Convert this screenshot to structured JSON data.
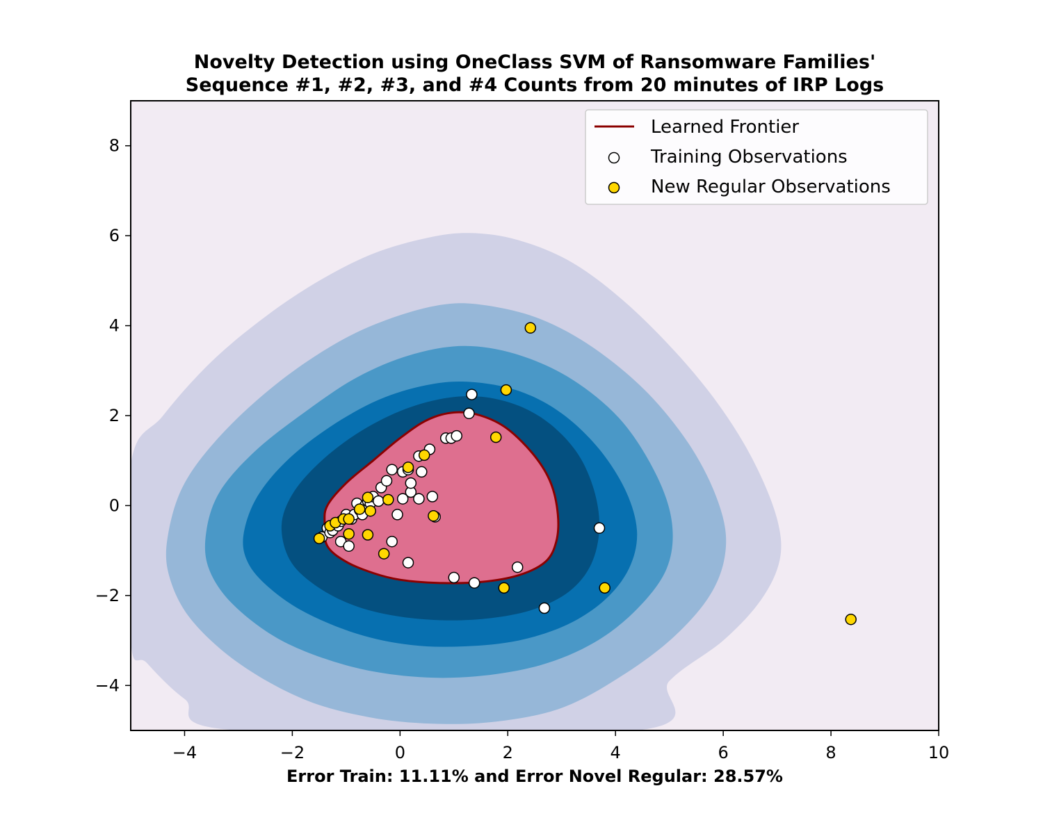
{
  "chart_data": {
    "type": "scatter",
    "title_lines": [
      "Novelty Detection using OneClass SVM of Ransomware Families'",
      "Sequence #1, #2, #3, and #4 Counts from 20 minutes of IRP Logs"
    ],
    "xlabel": "Error Train: 11.11% and Error Novel Regular: 28.57%",
    "ylabel": "",
    "xlim": [
      -5,
      10
    ],
    "ylim": [
      -5,
      9
    ],
    "xticks": [
      -4,
      -2,
      0,
      2,
      4,
      6,
      8,
      10
    ],
    "yticks": [
      -4,
      -2,
      0,
      2,
      4,
      6,
      8
    ],
    "grid": false,
    "legend_position": "top-right",
    "colors": {
      "background": "#f2ebf3",
      "contour_levels": [
        "#d0d1e6",
        "#96b7d8",
        "#4a98c7",
        "#0770b0",
        "#045080"
      ],
      "frontier_fill": "#de6f8f",
      "frontier_line": "#8b0000",
      "training_face": "#ffffff",
      "new_regular_face": "#ffd700",
      "marker_edge": "#000000"
    },
    "legend": [
      {
        "label": "Learned Frontier",
        "kind": "line"
      },
      {
        "label": "Training Observations",
        "kind": "training"
      },
      {
        "label": "New Regular Observations",
        "kind": "new"
      }
    ],
    "frontier": {
      "label": "Learned Frontier",
      "points": [
        [
          -1.35,
          -0.9
        ],
        [
          -1.4,
          -0.4
        ],
        [
          -1.35,
          0.0
        ],
        [
          -1.0,
          0.5
        ],
        [
          -0.5,
          1.0
        ],
        [
          0.0,
          1.5
        ],
        [
          0.5,
          1.9
        ],
        [
          1.0,
          2.07
        ],
        [
          1.5,
          2.0
        ],
        [
          2.0,
          1.7
        ],
        [
          2.5,
          1.1
        ],
        [
          2.8,
          0.5
        ],
        [
          2.93,
          -0.2
        ],
        [
          2.9,
          -0.8
        ],
        [
          2.7,
          -1.25
        ],
        [
          2.2,
          -1.55
        ],
        [
          1.5,
          -1.7
        ],
        [
          0.7,
          -1.72
        ],
        [
          0.0,
          -1.65
        ],
        [
          -0.5,
          -1.5
        ],
        [
          -1.0,
          -1.25
        ]
      ]
    },
    "contours": [
      {
        "level": 1,
        "points": [
          [
            -5,
            0.9
          ],
          [
            -4.4,
            2.0
          ],
          [
            -3.5,
            3.2
          ],
          [
            -2.5,
            4.2
          ],
          [
            -1.5,
            5.0
          ],
          [
            -0.5,
            5.6
          ],
          [
            0.5,
            5.95
          ],
          [
            1.3,
            6.06
          ],
          [
            2.2,
            5.9
          ],
          [
            3.2,
            5.4
          ],
          [
            4.2,
            4.5
          ],
          [
            5.2,
            3.3
          ],
          [
            6.0,
            2.1
          ],
          [
            6.6,
            0.9
          ],
          [
            7.0,
            -0.3
          ],
          [
            7.05,
            -1.2
          ],
          [
            6.7,
            -2.1
          ],
          [
            6.0,
            -3.0
          ],
          [
            5.0,
            -3.9
          ],
          [
            4.4,
            -5.0
          ],
          [
            -3.0,
            -5.0
          ],
          [
            -4.0,
            -4.3
          ],
          [
            -4.7,
            -3.5
          ],
          [
            -5,
            -3.0
          ]
        ]
      },
      {
        "level": 2,
        "points": [
          [
            -4.3,
            -0.6
          ],
          [
            -4.0,
            0.5
          ],
          [
            -3.3,
            1.6
          ],
          [
            -2.3,
            2.7
          ],
          [
            -1.2,
            3.6
          ],
          [
            -0.2,
            4.15
          ],
          [
            0.8,
            4.47
          ],
          [
            1.6,
            4.45
          ],
          [
            2.6,
            4.15
          ],
          [
            3.6,
            3.5
          ],
          [
            4.6,
            2.5
          ],
          [
            5.4,
            1.3
          ],
          [
            5.9,
            0.1
          ],
          [
            6.05,
            -0.9
          ],
          [
            5.8,
            -1.9
          ],
          [
            5.1,
            -2.9
          ],
          [
            4.1,
            -3.8
          ],
          [
            3.0,
            -4.5
          ],
          [
            1.8,
            -4.8
          ],
          [
            0.6,
            -4.85
          ],
          [
            -0.6,
            -4.7
          ],
          [
            -1.8,
            -4.3
          ],
          [
            -3.0,
            -3.5
          ],
          [
            -3.9,
            -2.5
          ],
          [
            -4.3,
            -1.5
          ]
        ]
      },
      {
        "level": 3,
        "points": [
          [
            -3.6,
            -0.6
          ],
          [
            -3.35,
            0.3
          ],
          [
            -2.7,
            1.2
          ],
          [
            -1.8,
            2.05
          ],
          [
            -0.8,
            2.85
          ],
          [
            0.2,
            3.35
          ],
          [
            1.2,
            3.55
          ],
          [
            2.2,
            3.35
          ],
          [
            3.2,
            2.8
          ],
          [
            4.1,
            1.9
          ],
          [
            4.75,
            0.7
          ],
          [
            5.05,
            -0.4
          ],
          [
            4.95,
            -1.4
          ],
          [
            4.4,
            -2.3
          ],
          [
            3.6,
            -3.05
          ],
          [
            2.6,
            -3.55
          ],
          [
            1.4,
            -3.8
          ],
          [
            0.2,
            -3.8
          ],
          [
            -1.0,
            -3.55
          ],
          [
            -2.2,
            -3.0
          ],
          [
            -3.1,
            -2.2
          ],
          [
            -3.55,
            -1.4
          ]
        ]
      },
      {
        "level": 4,
        "points": [
          [
            -2.9,
            -0.6
          ],
          [
            -2.65,
            0.2
          ],
          [
            -2.1,
            1.0
          ],
          [
            -1.3,
            1.75
          ],
          [
            -0.4,
            2.35
          ],
          [
            0.5,
            2.68
          ],
          [
            1.3,
            2.75
          ],
          [
            2.2,
            2.55
          ],
          [
            3.0,
            2.05
          ],
          [
            3.7,
            1.25
          ],
          [
            4.2,
            0.3
          ],
          [
            4.4,
            -0.6
          ],
          [
            4.25,
            -1.4
          ],
          [
            3.8,
            -2.1
          ],
          [
            3.1,
            -2.65
          ],
          [
            2.2,
            -3.0
          ],
          [
            1.2,
            -3.13
          ],
          [
            0.2,
            -3.1
          ],
          [
            -0.8,
            -2.85
          ],
          [
            -1.8,
            -2.35
          ],
          [
            -2.5,
            -1.75
          ],
          [
            -2.85,
            -1.2
          ]
        ]
      },
      {
        "level": 5,
        "points": [
          [
            -2.2,
            -0.45
          ],
          [
            -2.0,
            0.25
          ],
          [
            -1.5,
            0.95
          ],
          [
            -0.8,
            1.6
          ],
          [
            0.0,
            2.1
          ],
          [
            0.8,
            2.38
          ],
          [
            1.5,
            2.42
          ],
          [
            2.2,
            2.22
          ],
          [
            2.8,
            1.8
          ],
          [
            3.3,
            1.15
          ],
          [
            3.6,
            0.35
          ],
          [
            3.7,
            -0.5
          ],
          [
            3.55,
            -1.3
          ],
          [
            3.15,
            -1.9
          ],
          [
            2.5,
            -2.3
          ],
          [
            1.7,
            -2.5
          ],
          [
            0.8,
            -2.55
          ],
          [
            -0.1,
            -2.45
          ],
          [
            -0.9,
            -2.2
          ],
          [
            -1.6,
            -1.75
          ],
          [
            -2.05,
            -1.2
          ]
        ]
      }
    ],
    "series": [
      {
        "name": "Training Observations",
        "points": [
          [
            -1.45,
            -0.7
          ],
          [
            -1.35,
            -0.5
          ],
          [
            -1.3,
            -0.6
          ],
          [
            -1.25,
            -0.55
          ],
          [
            -1.2,
            -0.4
          ],
          [
            -1.15,
            -0.45
          ],
          [
            -1.1,
            -0.35
          ],
          [
            -1.1,
            -0.8
          ],
          [
            -1.05,
            -0.3
          ],
          [
            -1.0,
            -0.2
          ],
          [
            -0.95,
            -0.9
          ],
          [
            -0.9,
            -0.3
          ],
          [
            -0.85,
            -0.2
          ],
          [
            -0.8,
            0.05
          ],
          [
            -0.75,
            -0.1
          ],
          [
            -0.7,
            -0.2
          ],
          [
            -0.65,
            0.0
          ],
          [
            -0.6,
            0.1
          ],
          [
            -0.55,
            0.05
          ],
          [
            -0.5,
            0.2
          ],
          [
            -0.4,
            0.1
          ],
          [
            -0.35,
            0.4
          ],
          [
            -0.25,
            0.55
          ],
          [
            -0.15,
            0.8
          ],
          [
            -0.15,
            -0.8
          ],
          [
            -0.05,
            -0.2
          ],
          [
            0.05,
            0.15
          ],
          [
            0.05,
            0.75
          ],
          [
            0.15,
            0.8
          ],
          [
            0.15,
            -1.27
          ],
          [
            0.2,
            0.3
          ],
          [
            0.2,
            0.5
          ],
          [
            0.35,
            0.15
          ],
          [
            0.35,
            1.1
          ],
          [
            0.4,
            0.75
          ],
          [
            0.55,
            1.25
          ],
          [
            0.6,
            0.2
          ],
          [
            0.65,
            -0.25
          ],
          [
            0.85,
            1.5
          ],
          [
            0.95,
            1.5
          ],
          [
            1.05,
            1.55
          ],
          [
            1.0,
            -1.6
          ],
          [
            1.28,
            2.05
          ],
          [
            1.33,
            2.47
          ],
          [
            1.38,
            -1.72
          ],
          [
            2.18,
            -1.37
          ],
          [
            2.68,
            -2.28
          ],
          [
            3.7,
            -0.5
          ]
        ]
      },
      {
        "name": "New Regular Observations",
        "points": [
          [
            -1.5,
            -0.73
          ],
          [
            -1.3,
            -0.45
          ],
          [
            -1.2,
            -0.38
          ],
          [
            -1.05,
            -0.3
          ],
          [
            -0.95,
            -0.3
          ],
          [
            -0.95,
            -0.63
          ],
          [
            -0.75,
            -0.08
          ],
          [
            -0.6,
            0.18
          ],
          [
            -0.6,
            -0.65
          ],
          [
            -0.55,
            -0.12
          ],
          [
            -0.3,
            -1.07
          ],
          [
            -0.22,
            0.13
          ],
          [
            0.15,
            0.85
          ],
          [
            0.45,
            1.12
          ],
          [
            0.62,
            -0.23
          ],
          [
            1.78,
            1.52
          ],
          [
            1.93,
            -1.83
          ],
          [
            1.97,
            2.57
          ],
          [
            2.42,
            3.95
          ],
          [
            3.8,
            -1.83
          ],
          [
            8.37,
            -2.53
          ]
        ]
      }
    ]
  }
}
